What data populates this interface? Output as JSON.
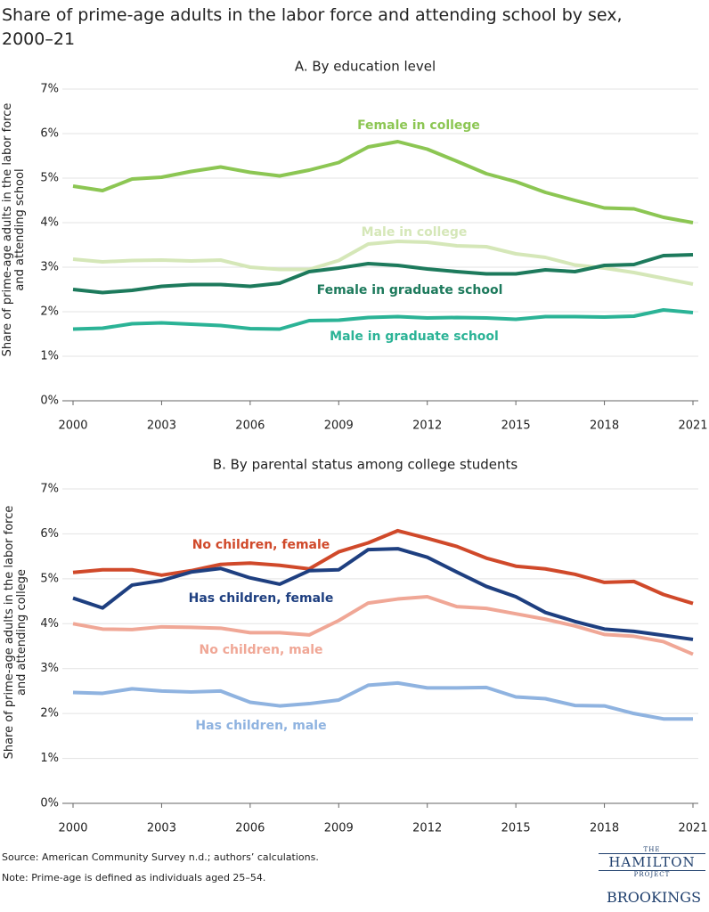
{
  "title": "Share of prime-age adults in the labor force and attending school by sex, 2000–21",
  "chart_data": [
    {
      "type": "line",
      "title": "A. By education level",
      "y_label": "Share of prime-age adults in the labor force and attending school",
      "x": [
        2000,
        2001,
        2002,
        2003,
        2004,
        2005,
        2006,
        2007,
        2008,
        2009,
        2010,
        2011,
        2012,
        2013,
        2014,
        2015,
        2016,
        2017,
        2018,
        2019,
        2020,
        2021
      ],
      "xlim": [
        2000,
        2021
      ],
      "xticks": [
        2000,
        2003,
        2006,
        2009,
        2012,
        2015,
        2018,
        2021
      ],
      "ylim": [
        0,
        7
      ],
      "yticks": [
        {
          "value": 0,
          "label": "0%"
        },
        {
          "value": 1,
          "label": "1%"
        },
        {
          "value": 2,
          "label": "2%"
        },
        {
          "value": 3,
          "label": "3%"
        },
        {
          "value": 4,
          "label": "4%"
        },
        {
          "value": 5,
          "label": "5%"
        },
        {
          "value": 6,
          "label": "6%"
        },
        {
          "value": 7,
          "label": "7%"
        }
      ],
      "grid": true,
      "series": [
        {
          "name": "Female in college",
          "color": "#8cc653",
          "values": [
            4.82,
            4.72,
            4.98,
            5.02,
            5.15,
            5.25,
            5.13,
            5.05,
            5.18,
            5.35,
            5.7,
            5.82,
            5.65,
            5.38,
            5.1,
            4.92,
            4.68,
            4.5,
            4.33,
            4.31,
            4.12,
            4.0
          ]
        },
        {
          "name": "Male in college",
          "color": "#d5e7b8",
          "values": [
            3.18,
            3.12,
            3.15,
            3.16,
            3.14,
            3.16,
            3.0,
            2.95,
            2.95,
            3.15,
            3.52,
            3.58,
            3.56,
            3.48,
            3.46,
            3.3,
            3.22,
            3.05,
            2.98,
            2.88,
            2.75,
            2.62
          ]
        },
        {
          "name": "Female in graduate school",
          "color": "#1d7a5c",
          "values": [
            2.5,
            2.43,
            2.48,
            2.57,
            2.61,
            2.61,
            2.57,
            2.64,
            2.9,
            2.98,
            3.08,
            3.04,
            2.96,
            2.9,
            2.85,
            2.85,
            2.94,
            2.9,
            3.04,
            3.06,
            3.26,
            3.28
          ]
        },
        {
          "name": "Male in graduate school",
          "color": "#2bb396",
          "values": [
            1.61,
            1.63,
            1.73,
            1.75,
            1.72,
            1.69,
            1.62,
            1.61,
            1.8,
            1.81,
            1.87,
            1.89,
            1.86,
            1.87,
            1.86,
            1.83,
            1.89,
            1.89,
            1.88,
            1.9,
            2.04,
            1.98
          ]
        }
      ]
    },
    {
      "type": "line",
      "title": "B. By parental status among college students",
      "y_label": "Share of prime-age adults in the labor force and attending college",
      "x": [
        2000,
        2001,
        2002,
        2003,
        2004,
        2005,
        2006,
        2007,
        2008,
        2009,
        2010,
        2011,
        2012,
        2013,
        2014,
        2015,
        2016,
        2017,
        2018,
        2019,
        2020,
        2021
      ],
      "xlim": [
        2000,
        2021
      ],
      "xticks": [
        2000,
        2003,
        2006,
        2009,
        2012,
        2015,
        2018,
        2021
      ],
      "ylim": [
        0,
        7
      ],
      "yticks": [
        {
          "value": 0,
          "label": "0%"
        },
        {
          "value": 1,
          "label": "1%"
        },
        {
          "value": 2,
          "label": "2%"
        },
        {
          "value": 3,
          "label": "3%"
        },
        {
          "value": 4,
          "label": "4%"
        },
        {
          "value": 5,
          "label": "5%"
        },
        {
          "value": 6,
          "label": "6%"
        },
        {
          "value": 7,
          "label": "7%"
        }
      ],
      "grid": true,
      "series": [
        {
          "name": "No children, female",
          "color": "#d0492a",
          "values": [
            5.14,
            5.2,
            5.2,
            5.08,
            5.18,
            5.32,
            5.35,
            5.3,
            5.22,
            5.6,
            5.8,
            6.07,
            5.9,
            5.72,
            5.46,
            5.28,
            5.22,
            5.1,
            4.92,
            4.94,
            4.65,
            4.45
          ]
        },
        {
          "name": "Has children, female",
          "color": "#1e3f80",
          "values": [
            4.57,
            4.35,
            4.86,
            4.96,
            5.15,
            5.23,
            5.02,
            4.88,
            5.18,
            5.2,
            5.65,
            5.67,
            5.48,
            5.15,
            4.83,
            4.6,
            4.25,
            4.05,
            3.88,
            3.83,
            3.74,
            3.65
          ]
        },
        {
          "name": "No children, male",
          "color": "#f0a796",
          "values": [
            4.0,
            3.88,
            3.87,
            3.93,
            3.92,
            3.9,
            3.8,
            3.8,
            3.75,
            4.07,
            4.46,
            4.55,
            4.6,
            4.38,
            4.34,
            4.22,
            4.1,
            3.95,
            3.76,
            3.72,
            3.6,
            3.32
          ]
        },
        {
          "name": "Has children, male",
          "color": "#8fb3e0",
          "values": [
            2.47,
            2.45,
            2.55,
            2.5,
            2.48,
            2.5,
            2.25,
            2.17,
            2.22,
            2.3,
            2.63,
            2.68,
            2.57,
            2.57,
            2.58,
            2.37,
            2.33,
            2.18,
            2.17,
            2.0,
            1.88,
            1.88
          ]
        }
      ]
    }
  ],
  "footer": {
    "source": "Source: American Community Survey n.d.; authors’ calculations.",
    "note": "Note: Prime-age is defined as individuals aged 25–54."
  },
  "logos": {
    "the": "THE",
    "hamilton": "HAMILTON",
    "project": "PROJECT",
    "brookings": "BROOKINGS"
  }
}
